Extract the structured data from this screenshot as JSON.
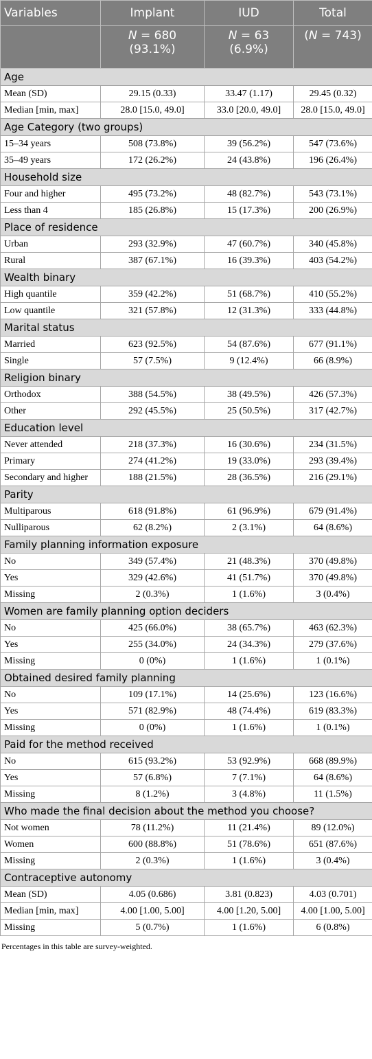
{
  "header": {
    "columns": [
      {
        "title": "Variables"
      },
      {
        "title": "Implant",
        "n_parts": [
          {
            "text": "N",
            "italic": true
          },
          {
            "text": " = 680"
          }
        ],
        "pct": "(93.1%)"
      },
      {
        "title": "IUD",
        "n_parts": [
          {
            "text": "N",
            "italic": true
          },
          {
            "text": " = 63"
          }
        ],
        "pct": "(6.9%)"
      },
      {
        "title": "Total",
        "n_parts": [
          {
            "text": "("
          },
          {
            "text": "N",
            "italic": true
          },
          {
            "text": " = 743)"
          }
        ]
      }
    ]
  },
  "sections": [
    {
      "title": "Age",
      "rows": [
        [
          "Mean (SD)",
          "29.15 (0.33)",
          "33.47 (1.17)",
          "29.45 (0.32)"
        ],
        [
          "Median [min, max]",
          "28.0 [15.0, 49.0]",
          "33.0 [20.0, 49.0]",
          "28.0 [15.0, 49.0]"
        ]
      ]
    },
    {
      "title": "Age Category (two groups)",
      "rows": [
        [
          "15–34 years",
          "508 (73.8%)",
          "39 (56.2%)",
          "547 (73.6%)"
        ],
        [
          "35–49 years",
          "172 (26.2%)",
          "24 (43.8%)",
          "196 (26.4%)"
        ]
      ]
    },
    {
      "title": "Household size",
      "rows": [
        [
          "Four and higher",
          "495 (73.2%)",
          "48 (82.7%)",
          "543 (73.1%)"
        ],
        [
          "Less than 4",
          "185 (26.8%)",
          "15 (17.3%)",
          "200 (26.9%)"
        ]
      ]
    },
    {
      "title": "Place of residence",
      "rows": [
        [
          "Urban",
          "293 (32.9%)",
          "47 (60.7%)",
          "340 (45.8%)"
        ],
        [
          "Rural",
          "387 (67.1%)",
          "16 (39.3%)",
          "403 (54.2%)"
        ]
      ]
    },
    {
      "title": "Wealth binary",
      "rows": [
        [
          "High quantile",
          "359 (42.2%)",
          "51 (68.7%)",
          "410 (55.2%)"
        ],
        [
          "Low quantile",
          "321 (57.8%)",
          "12 (31.3%)",
          "333 (44.8%)"
        ]
      ]
    },
    {
      "title": "Marital status",
      "rows": [
        [
          "Married",
          "623 (92.5%)",
          "54 (87.6%)",
          "677 (91.1%)"
        ],
        [
          "Single",
          "57 (7.5%)",
          "9 (12.4%)",
          "66 (8.9%)"
        ]
      ]
    },
    {
      "title": "Religion binary",
      "rows": [
        [
          "Orthodox",
          "388 (54.5%)",
          "38 (49.5%)",
          "426 (57.3%)"
        ],
        [
          "Other",
          "292 (45.5%)",
          "25 (50.5%)",
          "317 (42.7%)"
        ]
      ]
    },
    {
      "title": "Education level",
      "rows": [
        [
          "Never attended",
          "218 (37.3%)",
          "16 (30.6%)",
          "234 (31.5%)"
        ],
        [
          "Primary",
          "274 (41.2%)",
          "19 (33.0%)",
          "293 (39.4%)"
        ],
        [
          "Secondary and higher",
          "188 (21.5%)",
          "28 (36.5%)",
          "216 (29.1%)"
        ]
      ]
    },
    {
      "title": "Parity",
      "rows": [
        [
          "Multiparous",
          "618 (91.8%)",
          "61 (96.9%)",
          "679 (91.4%)"
        ],
        [
          "Nulliparous",
          "62 (8.2%)",
          "2 (3.1%)",
          "64 (8.6%)"
        ]
      ]
    },
    {
      "title": "Family planning information exposure",
      "rows": [
        [
          "No",
          "349 (57.4%)",
          "21 (48.3%)",
          "370 (49.8%)"
        ],
        [
          "Yes",
          "329 (42.6%)",
          "41 (51.7%)",
          "370 (49.8%)"
        ],
        [
          "Missing",
          "2 (0.3%)",
          "1 (1.6%)",
          "3 (0.4%)"
        ]
      ]
    },
    {
      "title": "Women are family planning option deciders",
      "rows": [
        [
          "No",
          "425 (66.0%)",
          "38 (65.7%)",
          "463 (62.3%)"
        ],
        [
          "Yes",
          "255 (34.0%)",
          "24 (34.3%)",
          "279 (37.6%)"
        ],
        [
          "Missing",
          "0 (0%)",
          "1 (1.6%)",
          "1 (0.1%)"
        ]
      ]
    },
    {
      "title": "Obtained desired family planning",
      "rows": [
        [
          "No",
          "109 (17.1%)",
          "14 (25.6%)",
          "123 (16.6%)"
        ],
        [
          "Yes",
          "571 (82.9%)",
          "48 (74.4%)",
          "619 (83.3%)"
        ],
        [
          "Missing",
          "0 (0%)",
          "1 (1.6%)",
          "1 (0.1%)"
        ]
      ]
    },
    {
      "title": "Paid for the method received",
      "rows": [
        [
          "No",
          "615 (93.2%)",
          "53 (92.9%)",
          "668 (89.9%)"
        ],
        [
          "Yes",
          "57 (6.8%)",
          "7 (7.1%)",
          "64 (8.6%)"
        ],
        [
          "Missing",
          "8 (1.2%)",
          "3 (4.8%)",
          "11 (1.5%)"
        ]
      ]
    },
    {
      "title": "Who made the final decision about the method you choose?",
      "rows": [
        [
          "Not women",
          "78 (11.2%)",
          "11 (21.4%)",
          "89 (12.0%)"
        ],
        [
          "Women",
          "600 (88.8%)",
          "51 (78.6%)",
          "651 (87.6%)"
        ],
        [
          "Missing",
          "2 (0.3%)",
          "1 (1.6%)",
          "3 (0.4%)"
        ]
      ]
    },
    {
      "title": "Contraceptive autonomy",
      "rows": [
        [
          "Mean (SD)",
          "4.05 (0.686)",
          "3.81 (0.823)",
          "4.03 (0.701)"
        ],
        [
          "Median [min, max]",
          "4.00 [1.00, 5.00]",
          "4.00 [1.20, 5.00]",
          "4.00 [1.00, 5.00]"
        ],
        [
          "Missing",
          "5 (0.7%)",
          "1 (1.6%)",
          "6 (0.8%)"
        ]
      ]
    }
  ],
  "footnote": "Percentages in this table are survey-weighted."
}
